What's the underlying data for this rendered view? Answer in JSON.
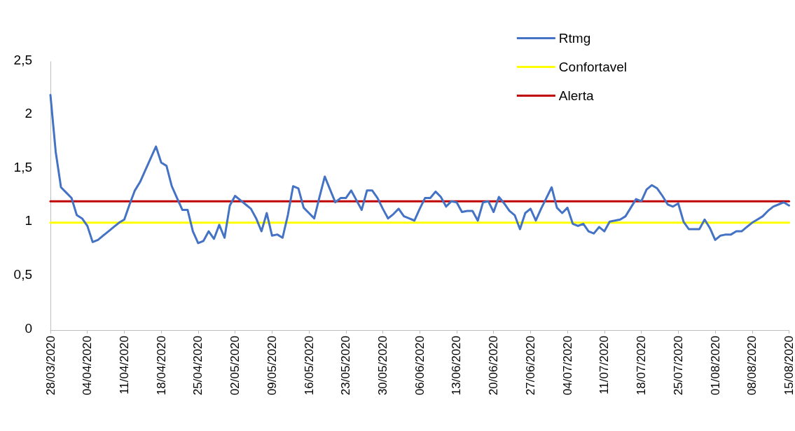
{
  "chart_data": {
    "type": "line",
    "xlim": [
      "2020-03-28",
      "2020-08-15"
    ],
    "xticks": [
      {
        "value": "2020-03-28",
        "label": "28/03/2020"
      },
      {
        "value": "2020-04-04",
        "label": "04/04/2020"
      },
      {
        "value": "2020-04-11",
        "label": "11/04/2020"
      },
      {
        "value": "2020-04-18",
        "label": "18/04/2020"
      },
      {
        "value": "2020-04-25",
        "label": "25/04/2020"
      },
      {
        "value": "2020-05-02",
        "label": "02/05/2020"
      },
      {
        "value": "2020-05-09",
        "label": "09/05/2020"
      },
      {
        "value": "2020-05-16",
        "label": "16/05/2020"
      },
      {
        "value": "2020-05-23",
        "label": "23/05/2020"
      },
      {
        "value": "2020-05-30",
        "label": "30/05/2020"
      },
      {
        "value": "2020-06-06",
        "label": "06/06/2020"
      },
      {
        "value": "2020-06-13",
        "label": "13/06/2020"
      },
      {
        "value": "2020-06-20",
        "label": "20/06/2020"
      },
      {
        "value": "2020-06-27",
        "label": "27/06/2020"
      },
      {
        "value": "2020-07-04",
        "label": "04/07/2020"
      },
      {
        "value": "2020-07-11",
        "label": "11/07/2020"
      },
      {
        "value": "2020-07-18",
        "label": "18/07/2020"
      },
      {
        "value": "2020-07-25",
        "label": "25/07/2020"
      },
      {
        "value": "2020-08-01",
        "label": "01/08/2020"
      },
      {
        "value": "2020-08-08",
        "label": "08/08/2020"
      },
      {
        "value": "2020-08-15",
        "label": "15/08/2020"
      }
    ],
    "ylim": [
      0,
      2.5
    ],
    "yticks": [
      0,
      {
        "value": 0.5,
        "label": "0,5"
      },
      1,
      {
        "value": 1.5,
        "label": "1,5"
      },
      2,
      {
        "value": 2.5,
        "label": "2,5"
      }
    ],
    "grid": false,
    "legend": "top right",
    "marker": "none",
    "line_style": "solid",
    "series": [
      {
        "name": "Rtmg",
        "color": "#4472c4",
        "x": [
          "2020-03-28",
          "2020-03-29",
          "2020-03-30",
          "2020-03-31",
          "2020-04-01",
          "2020-04-02",
          "2020-04-03",
          "2020-04-04",
          "2020-04-05",
          "2020-04-06",
          "2020-04-07",
          "2020-04-08",
          "2020-04-09",
          "2020-04-10",
          "2020-04-11",
          "2020-04-12",
          "2020-04-13",
          "2020-04-14",
          "2020-04-15",
          "2020-04-16",
          "2020-04-17",
          "2020-04-18",
          "2020-04-19",
          "2020-04-20",
          "2020-04-21",
          "2020-04-22",
          "2020-04-23",
          "2020-04-24",
          "2020-04-25",
          "2020-04-26",
          "2020-04-27",
          "2020-04-28",
          "2020-04-29",
          "2020-04-30",
          "2020-05-01",
          "2020-05-02",
          "2020-05-03",
          "2020-05-04",
          "2020-05-05",
          "2020-05-06",
          "2020-05-07",
          "2020-05-08",
          "2020-05-09",
          "2020-05-10",
          "2020-05-11",
          "2020-05-12",
          "2020-05-13",
          "2020-05-14",
          "2020-05-15",
          "2020-05-16",
          "2020-05-17",
          "2020-05-18",
          "2020-05-19",
          "2020-05-20",
          "2020-05-21",
          "2020-05-22",
          "2020-05-23",
          "2020-05-24",
          "2020-05-25",
          "2020-05-26",
          "2020-05-27",
          "2020-05-28",
          "2020-05-29",
          "2020-05-30",
          "2020-05-31",
          "2020-06-01",
          "2020-06-02",
          "2020-06-03",
          "2020-06-04",
          "2020-06-05",
          "2020-06-06",
          "2020-06-07",
          "2020-06-08",
          "2020-06-09",
          "2020-06-10",
          "2020-06-11",
          "2020-06-12",
          "2020-06-13",
          "2020-06-14",
          "2020-06-15",
          "2020-06-16",
          "2020-06-17",
          "2020-06-18",
          "2020-06-19",
          "2020-06-20",
          "2020-06-21",
          "2020-06-22",
          "2020-06-23",
          "2020-06-24",
          "2020-06-25",
          "2020-06-26",
          "2020-06-27",
          "2020-06-28",
          "2020-06-29",
          "2020-06-30",
          "2020-07-01",
          "2020-07-02",
          "2020-07-03",
          "2020-07-04",
          "2020-07-05",
          "2020-07-06",
          "2020-07-07",
          "2020-07-08",
          "2020-07-09",
          "2020-07-10",
          "2020-07-11",
          "2020-07-12",
          "2020-07-13",
          "2020-07-14",
          "2020-07-15",
          "2020-07-16",
          "2020-07-17",
          "2020-07-18",
          "2020-07-19",
          "2020-07-20",
          "2020-07-21",
          "2020-07-22",
          "2020-07-23",
          "2020-07-24",
          "2020-07-25",
          "2020-07-26",
          "2020-07-27",
          "2020-07-28",
          "2020-07-29",
          "2020-07-30",
          "2020-07-31",
          "2020-08-01",
          "2020-08-02",
          "2020-08-03",
          "2020-08-04",
          "2020-08-05",
          "2020-08-06",
          "2020-08-07",
          "2020-08-08",
          "2020-08-09",
          "2020-08-10",
          "2020-08-11",
          "2020-08-12",
          "2020-08-13",
          "2020-08-14",
          "2020-08-15"
        ],
        "values": [
          2.19,
          1.66,
          1.33,
          1.28,
          1.23,
          1.07,
          1.04,
          0.97,
          0.82,
          0.84,
          0.88,
          0.92,
          0.96,
          1.0,
          1.03,
          1.17,
          1.3,
          1.38,
          1.49,
          1.6,
          1.71,
          1.56,
          1.53,
          1.34,
          1.23,
          1.12,
          1.12,
          0.92,
          0.81,
          0.83,
          0.92,
          0.85,
          0.98,
          0.86,
          1.16,
          1.25,
          1.21,
          1.17,
          1.13,
          1.04,
          0.92,
          1.09,
          0.88,
          0.89,
          0.86,
          1.07,
          1.34,
          1.32,
          1.14,
          1.09,
          1.04,
          1.24,
          1.43,
          1.31,
          1.19,
          1.23,
          1.23,
          1.3,
          1.21,
          1.12,
          1.3,
          1.3,
          1.23,
          1.13,
          1.04,
          1.08,
          1.13,
          1.06,
          1.04,
          1.02,
          1.13,
          1.23,
          1.23,
          1.29,
          1.24,
          1.15,
          1.2,
          1.19,
          1.1,
          1.11,
          1.11,
          1.02,
          1.19,
          1.2,
          1.1,
          1.24,
          1.18,
          1.11,
          1.07,
          0.94,
          1.09,
          1.13,
          1.02,
          1.13,
          1.23,
          1.33,
          1.14,
          1.09,
          1.14,
          0.99,
          0.97,
          0.99,
          0.92,
          0.9,
          0.96,
          0.92,
          1.01,
          1.02,
          1.03,
          1.06,
          1.14,
          1.22,
          1.2,
          1.31,
          1.35,
          1.32,
          1.25,
          1.17,
          1.15,
          1.18,
          1.01,
          0.94,
          0.94,
          0.94,
          1.03,
          0.95,
          0.84,
          0.88,
          0.89,
          0.89,
          0.92,
          0.92,
          0.96,
          1.0,
          1.03,
          1.06,
          1.11,
          1.15,
          1.17,
          1.19,
          1.16
        ]
      },
      {
        "name": "Confortavel",
        "color": "#ffff00",
        "x": [
          "2020-03-28",
          "2020-08-15"
        ],
        "values": [
          1,
          1
        ]
      },
      {
        "name": "Alerta",
        "color": "#c00000",
        "x": [
          "2020-03-28",
          "2020-08-15"
        ],
        "values": [
          1.2,
          1.2
        ]
      }
    ]
  }
}
